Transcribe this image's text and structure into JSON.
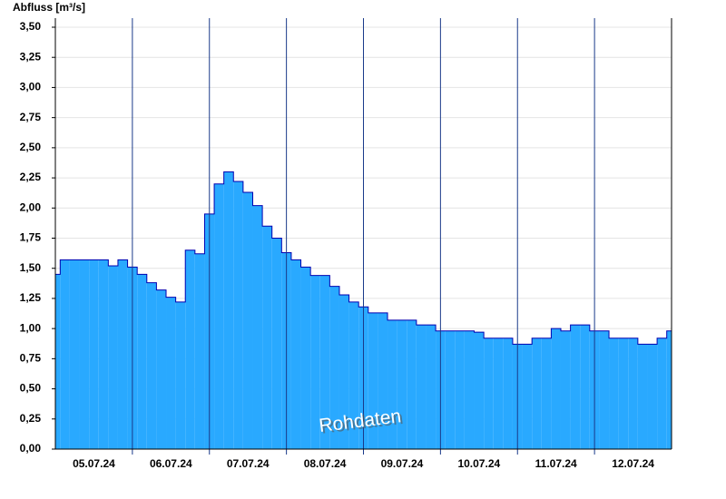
{
  "chart_data": {
    "type": "area",
    "y_label": "Abfluss [m³/s]",
    "annotation": "Rohdaten",
    "categories": [
      null,
      null,
      null,
      null,
      "05.07.24",
      null,
      null,
      null,
      null,
      null,
      null,
      null,
      "06.07.24",
      null,
      null,
      null,
      null,
      null,
      null,
      null,
      "07.07.24",
      null,
      null,
      null,
      null,
      null,
      null,
      null,
      "08.07.24",
      null,
      null,
      null,
      null,
      null,
      null,
      null,
      "09.07.24",
      null,
      null,
      null,
      null,
      null,
      null,
      null,
      "10.07.24",
      null,
      null,
      null,
      null,
      null,
      null,
      null,
      "11.07.24",
      null,
      null,
      null,
      null,
      null,
      null,
      null,
      "12.07.24",
      null,
      null,
      null,
      null
    ],
    "values": [
      1.45,
      1.57,
      1.57,
      1.57,
      1.57,
      1.57,
      1.52,
      1.57,
      1.51,
      1.45,
      1.38,
      1.32,
      1.26,
      1.22,
      1.65,
      1.62,
      1.95,
      2.2,
      2.3,
      2.22,
      2.13,
      2.02,
      1.85,
      1.75,
      1.63,
      1.57,
      1.51,
      1.44,
      1.44,
      1.35,
      1.28,
      1.22,
      1.18,
      1.13,
      1.13,
      1.07,
      1.07,
      1.07,
      1.03,
      1.03,
      0.98,
      0.98,
      0.98,
      0.98,
      0.97,
      0.92,
      0.92,
      0.92,
      0.87,
      0.87,
      0.92,
      0.92,
      1.0,
      0.98,
      1.03,
      1.03,
      0.98,
      0.98,
      0.92,
      0.92,
      0.92,
      0.87,
      0.87,
      0.92,
      0.98
    ],
    "color": "#29a9ff",
    "line_color": "#0000b0",
    "ylim": [
      0,
      3.5
    ],
    "yticks": [
      {
        "value": 0,
        "label": "0,00"
      },
      {
        "value": 0.25,
        "label": "0,25"
      },
      {
        "value": 0.5,
        "label": "0,50"
      },
      {
        "value": 0.75,
        "label": "0,75"
      },
      {
        "value": 1,
        "label": "1,00"
      },
      {
        "value": 1.25,
        "label": "1,25"
      },
      {
        "value": 1.5,
        "label": "1,50"
      },
      {
        "value": 1.75,
        "label": "1,75"
      },
      {
        "value": 2,
        "label": "2,00"
      },
      {
        "value": 2.25,
        "label": "2,25"
      },
      {
        "value": 2.5,
        "label": "2,50"
      },
      {
        "value": 2.75,
        "label": "2,75"
      },
      {
        "value": 3,
        "label": "3,00"
      },
      {
        "value": 3.25,
        "label": "3,25"
      },
      {
        "value": 3.5,
        "label": "3,50"
      }
    ],
    "grid": true
  }
}
